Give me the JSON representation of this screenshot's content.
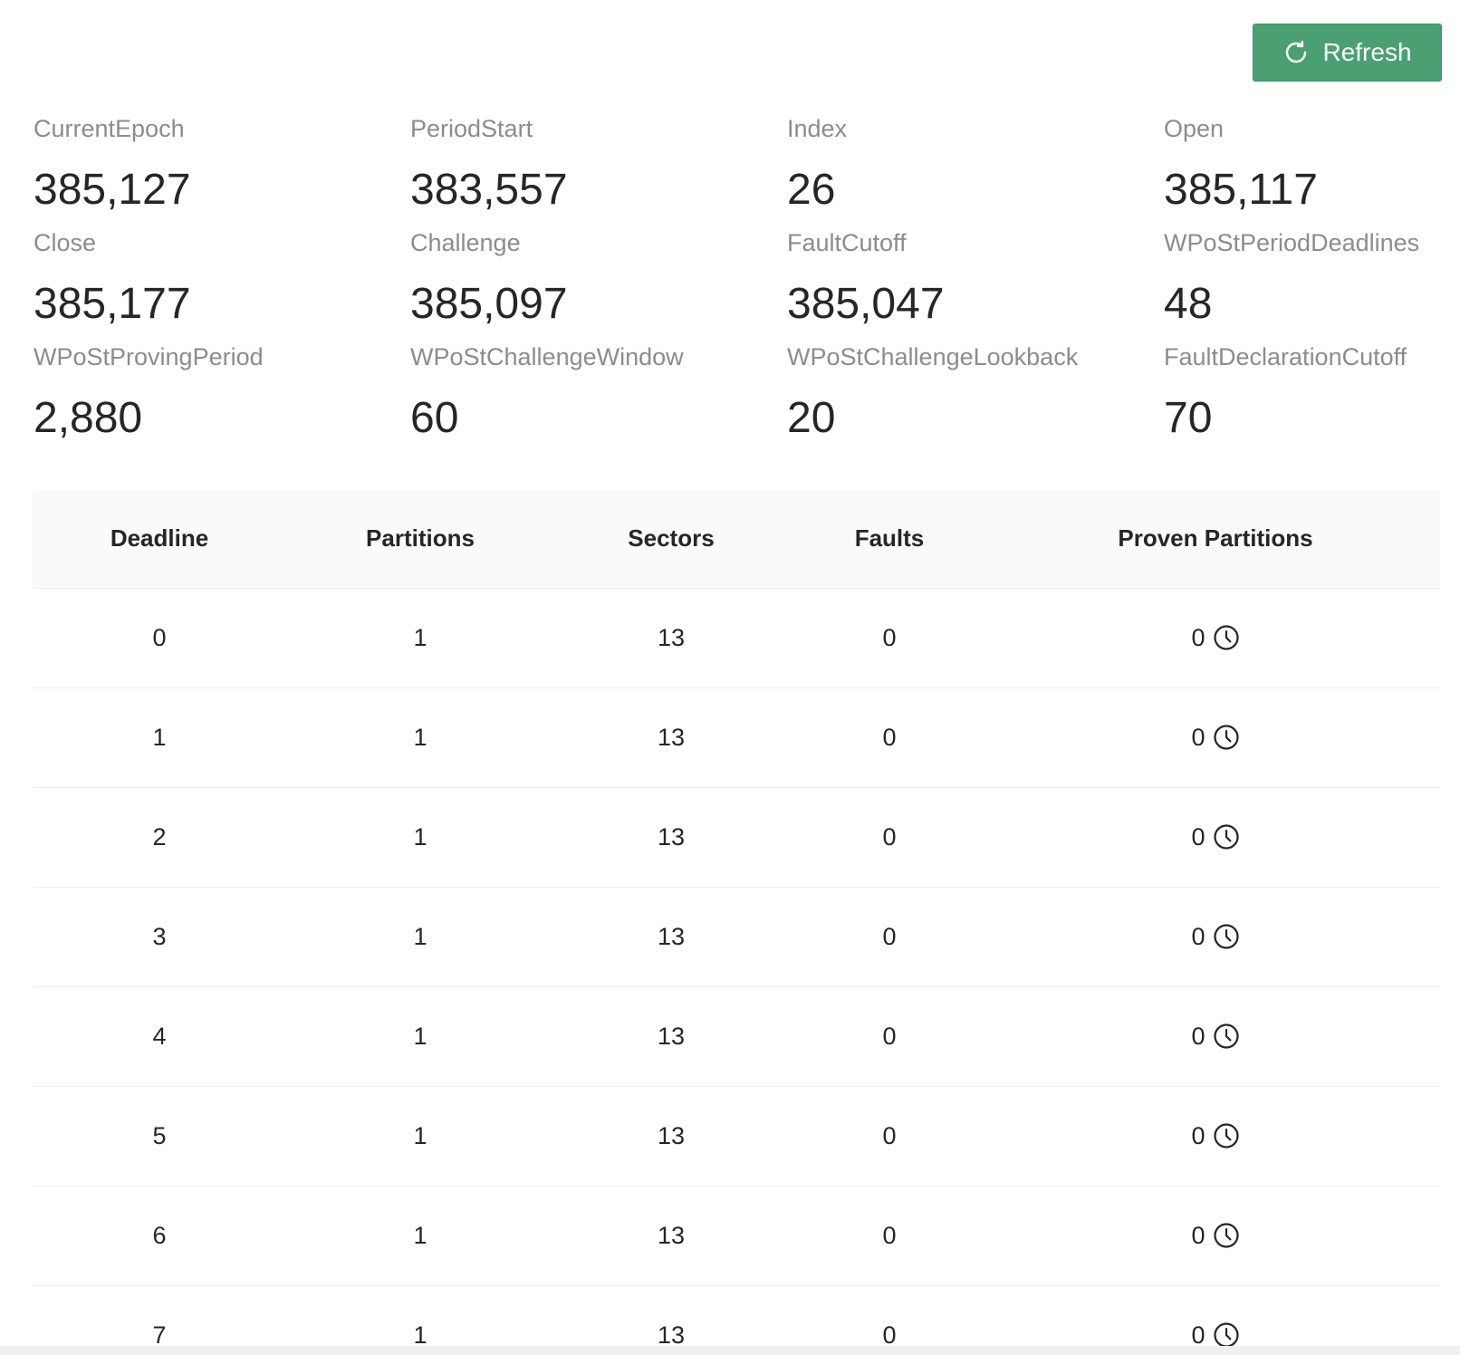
{
  "toolbar": {
    "refresh_label": "Refresh",
    "refresh_icon": "reload-icon"
  },
  "stats": [
    {
      "label": "CurrentEpoch",
      "value": "385,127"
    },
    {
      "label": "PeriodStart",
      "value": "383,557"
    },
    {
      "label": "Index",
      "value": "26"
    },
    {
      "label": "Open",
      "value": "385,117"
    },
    {
      "label": "Close",
      "value": "385,177"
    },
    {
      "label": "Challenge",
      "value": "385,097"
    },
    {
      "label": "FaultCutoff",
      "value": "385,047"
    },
    {
      "label": "WPoStPeriodDeadlines",
      "value": "48"
    },
    {
      "label": "WPoStProvingPeriod",
      "value": "2,880"
    },
    {
      "label": "WPoStChallengeWindow",
      "value": "60"
    },
    {
      "label": "WPoStChallengeLookback",
      "value": "20"
    },
    {
      "label": "FaultDeclarationCutoff",
      "value": "70"
    }
  ],
  "table": {
    "columns": [
      "Deadline",
      "Partitions",
      "Sectors",
      "Faults",
      "Proven Partitions"
    ],
    "rows": [
      {
        "deadline": "0",
        "partitions": "1",
        "sectors": "13",
        "faults": "0",
        "proven": "0"
      },
      {
        "deadline": "1",
        "partitions": "1",
        "sectors": "13",
        "faults": "0",
        "proven": "0"
      },
      {
        "deadline": "2",
        "partitions": "1",
        "sectors": "13",
        "faults": "0",
        "proven": "0"
      },
      {
        "deadline": "3",
        "partitions": "1",
        "sectors": "13",
        "faults": "0",
        "proven": "0"
      },
      {
        "deadline": "4",
        "partitions": "1",
        "sectors": "13",
        "faults": "0",
        "proven": "0"
      },
      {
        "deadline": "5",
        "partitions": "1",
        "sectors": "13",
        "faults": "0",
        "proven": "0"
      },
      {
        "deadline": "6",
        "partitions": "1",
        "sectors": "13",
        "faults": "0",
        "proven": "0"
      },
      {
        "deadline": "7",
        "partitions": "1",
        "sectors": "13",
        "faults": "0",
        "proven": "0"
      }
    ],
    "status_icon": "clock-icon"
  }
}
